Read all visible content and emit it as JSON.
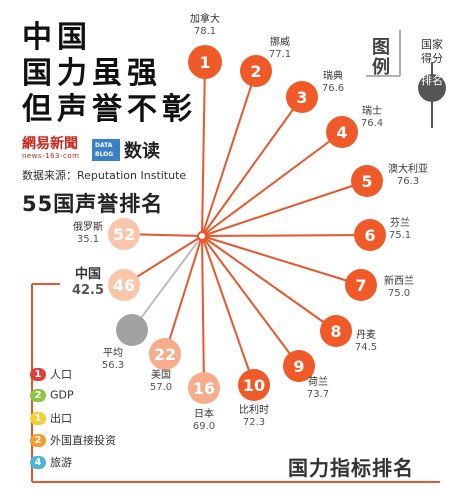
{
  "headline": [
    "中国",
    "国力虽强",
    "但声誉不彰"
  ],
  "brand": {
    "logo_cn": "網易新聞",
    "logo_url": "news-163-com",
    "datablog": "DATA BLOG",
    "datablog_cn": "数读"
  },
  "source": "数据来源：Reputation Institute",
  "subtitle": "55国声誉排名",
  "legend": {
    "title": "图例",
    "country_label": "国家得分",
    "rank_label": "排名"
  },
  "bottom_title": "国力指标排名",
  "indicators": [
    {
      "rank": "1",
      "label": "人口",
      "color": "#d9413a"
    },
    {
      "rank": "2",
      "label": "GDP",
      "color": "#8cc63f"
    },
    {
      "rank": "1",
      "label": "出口",
      "color": "#f6cd33"
    },
    {
      "rank": "2",
      "label": "外国直接投资",
      "color": "#f49c2c"
    },
    {
      "rank": "4",
      "label": "旅游",
      "color": "#4fb5d8"
    }
  ],
  "colors": {
    "top": "#f05a28",
    "ref": "#f7ad8c",
    "china": "#f9c6ab",
    "avg": "#a2a2a2",
    "line": "#e8572b",
    "china_line": "#e8572b"
  },
  "chart_data": {
    "type": "radial-rank",
    "title": "55国声誉排名",
    "countries": [
      {
        "rank": "1",
        "name": "加拿大",
        "score": 78.1
      },
      {
        "rank": "2",
        "name": "挪威",
        "score": 77.1
      },
      {
        "rank": "3",
        "name": "瑞典",
        "score": 76.6
      },
      {
        "rank": "4",
        "name": "瑞士",
        "score": 76.4
      },
      {
        "rank": "5",
        "name": "澳大利亚",
        "score": 76.3
      },
      {
        "rank": "6",
        "name": "芬兰",
        "score": 75.1
      },
      {
        "rank": "7",
        "name": "新西兰",
        "score": 75.0
      },
      {
        "rank": "8",
        "name": "丹麦",
        "score": 74.5
      },
      {
        "rank": "9",
        "name": "荷兰",
        "score": 73.7
      },
      {
        "rank": "10",
        "name": "比利时",
        "score": 72.3
      },
      {
        "rank": "16",
        "name": "日本",
        "score": 69.0
      },
      {
        "rank": "22",
        "name": "美国",
        "score": 57.0
      },
      {
        "rank": "",
        "name": "平均",
        "score": 56.3
      },
      {
        "rank": "46",
        "name": "中国",
        "score": 42.5
      },
      {
        "rank": "52",
        "name": "俄罗斯",
        "score": 35.1
      }
    ]
  }
}
